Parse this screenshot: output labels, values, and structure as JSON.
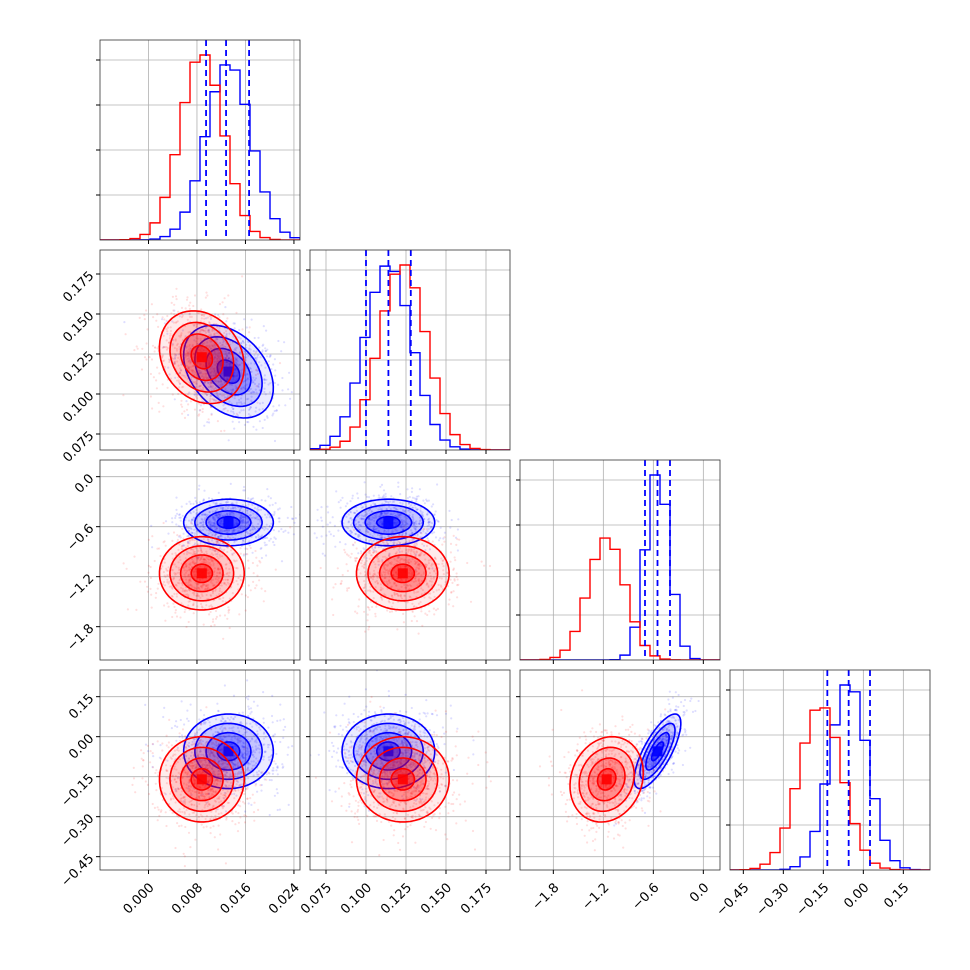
{
  "chart_data": {
    "type": "corner",
    "n_params": 4,
    "colors": {
      "series_a": "#0000ff",
      "series_b": "#ff0000",
      "grid": "#b0b0b0"
    },
    "series": [
      {
        "color": "#0000ff",
        "means": [
          0.0132,
          0.114,
          -0.55,
          -0.055
        ],
        "sds": [
          0.0037,
          0.0145,
          0.14,
          0.07
        ],
        "corr_12": -0.35,
        "corr_34": 0.75
      },
      {
        "color": "#ff0000",
        "means": [
          0.0088,
          0.123,
          -1.16,
          -0.16
        ],
        "sds": [
          0.0035,
          0.0145,
          0.22,
          0.08
        ],
        "corr_12": -0.2,
        "corr_34": 0.15
      }
    ],
    "quantile_lines": [
      [
        0.0095,
        0.0128,
        0.0166
      ],
      [
        0.1,
        0.114,
        0.128
      ],
      [
        -0.7,
        -0.55,
        -0.4
      ],
      [
        -0.135,
        -0.055,
        0.025
      ]
    ],
    "axes": [
      {
        "range": [
          -0.008,
          0.025
        ],
        "ticks": [
          0.0,
          0.008,
          0.016,
          0.024
        ],
        "tick_labels": [
          "0.000",
          "0.008",
          "0.016",
          "0.024"
        ]
      },
      {
        "range": [
          0.065,
          0.19
        ],
        "ticks": [
          0.075,
          0.1,
          0.125,
          0.15,
          0.175
        ],
        "tick_labels": [
          "0.075",
          "0.100",
          "0.125",
          "0.150",
          "0.175"
        ]
      },
      {
        "range": [
          -2.2,
          0.2
        ],
        "ticks": [
          -1.8,
          -1.2,
          -0.6,
          0.0
        ],
        "tick_labels": [
          "−1.8",
          "−1.2",
          "−0.6",
          "0.0"
        ]
      },
      {
        "range": [
          -0.5,
          0.25
        ],
        "ticks": [
          -0.45,
          -0.3,
          -0.15,
          0.0,
          0.15
        ],
        "tick_labels": [
          "−0.45",
          "−0.30",
          "−0.15",
          "0.00",
          "0.15"
        ]
      }
    ],
    "grid": true,
    "xlabel": "",
    "ylabel": ""
  }
}
